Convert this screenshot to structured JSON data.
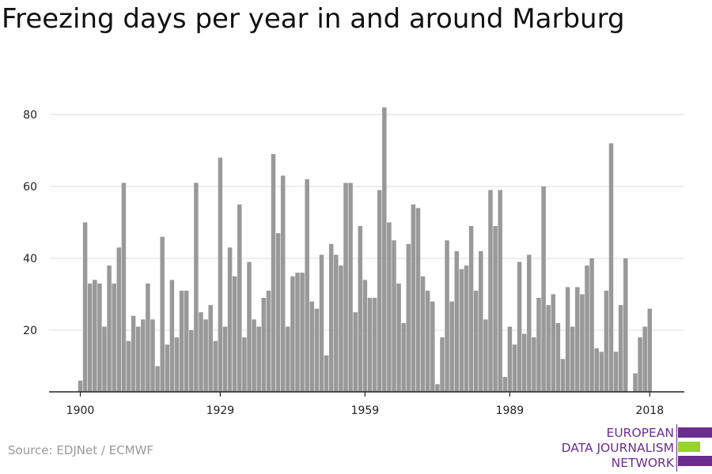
{
  "chart_data": {
    "type": "bar",
    "title": "Freezing days per year in and around Marburg",
    "xlabel": "",
    "ylabel": "",
    "x_start": 1900,
    "x_end": 2018,
    "x_ticks": [
      1900,
      1929,
      1959,
      1989,
      2018
    ],
    "y_ticks": [
      20,
      40,
      60,
      80
    ],
    "ylim": [
      3,
      85
    ],
    "grid": true,
    "bar_color": "#999999",
    "values": [
      6,
      50,
      33,
      34,
      33,
      21,
      38,
      33,
      43,
      61,
      17,
      24,
      21,
      23,
      33,
      23,
      10,
      46,
      16,
      34,
      18,
      31,
      31,
      20,
      61,
      25,
      23,
      27,
      17,
      68,
      21,
      43,
      35,
      55,
      18,
      39,
      23,
      21,
      29,
      31,
      69,
      47,
      63,
      21,
      35,
      36,
      36,
      62,
      28,
      26,
      41,
      13,
      44,
      41,
      38,
      61,
      61,
      25,
      49,
      34,
      29,
      29,
      59,
      82,
      50,
      45,
      33,
      22,
      44,
      55,
      54,
      35,
      31,
      28,
      5,
      18,
      45,
      28,
      42,
      37,
      38,
      49,
      31,
      42,
      23,
      59,
      49,
      59,
      7,
      21,
      16,
      39,
      19,
      41,
      18,
      29,
      60,
      27,
      30,
      22,
      12,
      32,
      21,
      32,
      30,
      38,
      40,
      15,
      14,
      31,
      72,
      14,
      27,
      40,
      3,
      8,
      18,
      21,
      26
    ]
  },
  "source": "Source: EDJNet / ECMWF",
  "logo": {
    "line1": "EUROPEAN",
    "line2": "DATA JOURNALISM",
    "line3": "NETWORK",
    "purple": "#6c2c8f",
    "green": "#95d42b"
  }
}
